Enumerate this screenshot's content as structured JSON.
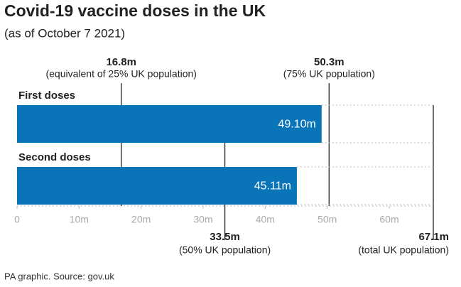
{
  "chart_data": {
    "type": "hbar",
    "title": "Covid-19 vaccine doses in the UK",
    "subtitle": "(as of October 7 2021)",
    "source": "PA graphic. Source: gov.uk",
    "categories": [
      "First doses",
      "Second doses"
    ],
    "values": [
      49.1,
      45.11
    ],
    "value_labels": [
      "49.10m",
      "45.11m"
    ],
    "color": "#0a74b8",
    "xlim": [
      0,
      67.1
    ],
    "xticks": [
      0,
      {
        "value": 10,
        "label": "10m"
      },
      {
        "value": 20,
        "label": "20m"
      },
      {
        "value": 30,
        "label": "30m"
      },
      {
        "value": 40,
        "label": "40m"
      },
      {
        "value": 50,
        "label": "50m"
      },
      {
        "value": 60,
        "label": "60m"
      }
    ],
    "reference_lines": [
      {
        "value": 16.8,
        "label": "16.8m",
        "note": "(equivalent of 25% UK population)"
      },
      {
        "value": 50.3,
        "label": "50.3m",
        "note": "(75% UK population)"
      },
      {
        "value": 33.5,
        "label": "33.5m",
        "note": "(50% UK population)"
      },
      {
        "value": 67.1,
        "label": "67.1m",
        "note": "(total UK population)"
      }
    ]
  }
}
